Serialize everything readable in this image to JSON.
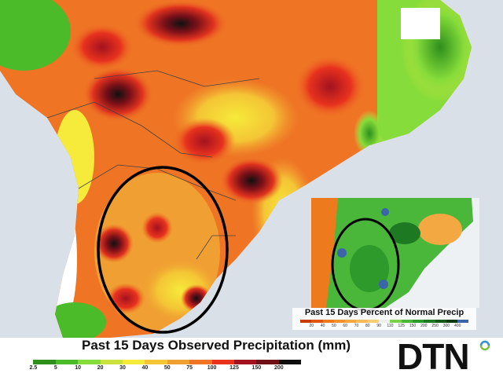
{
  "main_map": {
    "legend_title": "Past 15 Days Observed Precipitation (mm)",
    "legend_ticks": [
      "2.5",
      "5",
      "10",
      "20",
      "30",
      "40",
      "50",
      "75",
      "100",
      "125",
      "150",
      "200"
    ],
    "legend_colors": [
      "#ffffff",
      "#2e8f1c",
      "#4cbb2a",
      "#86dc3a",
      "#c9e23e",
      "#f6ea3a",
      "#f4c535",
      "#f0a032",
      "#ef7424",
      "#e8321e",
      "#a3121f",
      "#6f1016",
      "#0d0d0d"
    ]
  },
  "inset_map": {
    "legend_title": "Past 15 Days Percent of Normal Precip",
    "legend_ticks": [
      "20",
      "40",
      "50",
      "60",
      "70",
      "80",
      "90",
      "110",
      "125",
      "150",
      "200",
      "250",
      "300",
      "400"
    ],
    "legend_colors": [
      "#c83c0a",
      "#e0560e",
      "#ee7a1e",
      "#f29230",
      "#f4a842",
      "#f6ba5a",
      "#f8cc72",
      "#eeeeee",
      "#7ad44a",
      "#4ab63a",
      "#2e9a2c",
      "#1e7a22",
      "#14581a",
      "#0c3a10",
      "#3c64a8"
    ]
  },
  "logo": {
    "text": "DTN",
    "ring_colors": [
      "#3a8fd0",
      "#7ac143"
    ]
  }
}
